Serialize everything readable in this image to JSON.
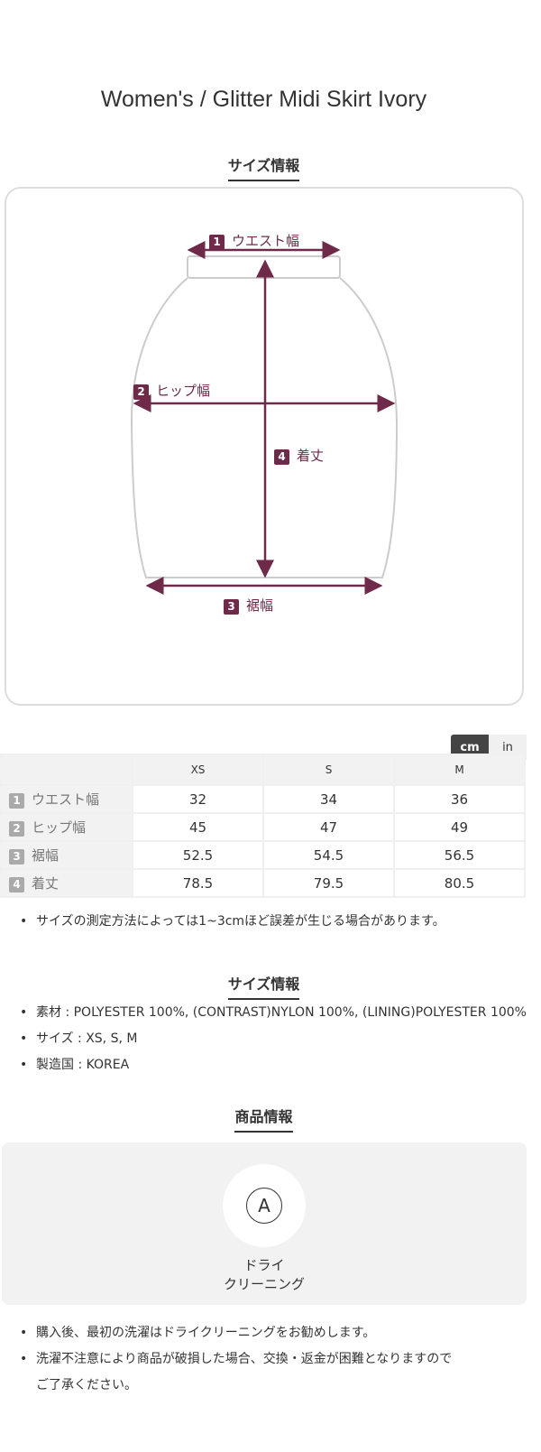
{
  "title": "Women's / Glitter Midi Skirt Ivory",
  "size_guide": {
    "heading": "サイズ情報",
    "diagram": {
      "labels": [
        {
          "num": "1",
          "text": "ウエスト幅"
        },
        {
          "num": "2",
          "text": "ヒップ幅"
        },
        {
          "num": "3",
          "text": "裾幅"
        },
        {
          "num": "4",
          "text": "着丈"
        }
      ],
      "accent": "#6e2a48"
    },
    "units": {
      "cm": "cm",
      "in": "in",
      "selected": "cm"
    },
    "table": {
      "headers": [
        "XS",
        "S",
        "M"
      ],
      "rows": [
        {
          "num": "1",
          "label": "ウエスト幅",
          "values": [
            "32",
            "34",
            "36"
          ]
        },
        {
          "num": "2",
          "label": "ヒップ幅",
          "values": [
            "45",
            "47",
            "49"
          ]
        },
        {
          "num": "3",
          "label": "裾幅",
          "values": [
            "52.5",
            "54.5",
            "56.5"
          ]
        },
        {
          "num": "4",
          "label": "着丈",
          "values": [
            "78.5",
            "79.5",
            "80.5"
          ]
        }
      ]
    },
    "note": "サイズの測定方法によっては1~3cmほど誤差が生じる場合があります。"
  },
  "spec": {
    "heading": "サイズ情報",
    "items": [
      "素材 : POLYESTER 100%,  (CONTRAST)NYLON 100%,  (LINING)POLYESTER 100%",
      "サイズ : XS, S, M",
      "製造国 : KOREA"
    ]
  },
  "care": {
    "heading": "商品情報",
    "icon_letter": "A",
    "icon_label_1": "ドライ",
    "icon_label_2": "クリーニング",
    "notes": [
      "購入後、最初の洗濯はドライクリーニングをお勧めします。",
      "洗濯不注意により商品が破損した場合、交換・返金が困難となりますので",
      "ご了承ください。"
    ]
  }
}
